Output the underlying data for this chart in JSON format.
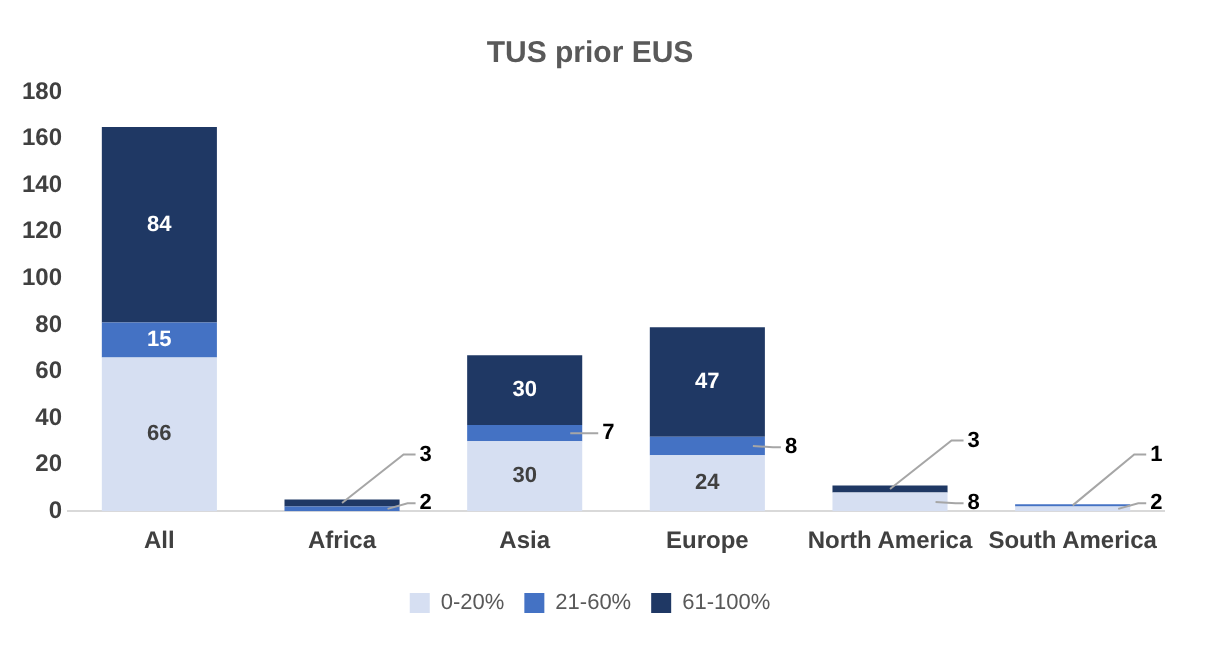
{
  "chart_data": {
    "type": "bar",
    "title": "TUS prior EUS",
    "categories": [
      "All",
      "Africa",
      "Asia",
      "Europe",
      "North America",
      "South America"
    ],
    "stacked": true,
    "series": [
      {
        "name": "0-20%",
        "color": "#d6dff2",
        "values": [
          66,
          null,
          30,
          24,
          8,
          2
        ]
      },
      {
        "name": "21-60%",
        "color": "#4472c4",
        "values": [
          15,
          2,
          7,
          8,
          null,
          1
        ]
      },
      {
        "name": "61-100%",
        "color": "#1f3864",
        "values": [
          84,
          3,
          30,
          47,
          3,
          null
        ]
      }
    ],
    "ylim": [
      0,
      180
    ],
    "yticks": [
      0,
      20,
      40,
      60,
      80,
      100,
      120,
      140,
      160,
      180
    ],
    "grid": false,
    "legend": "bottom",
    "data_labels": true
  }
}
